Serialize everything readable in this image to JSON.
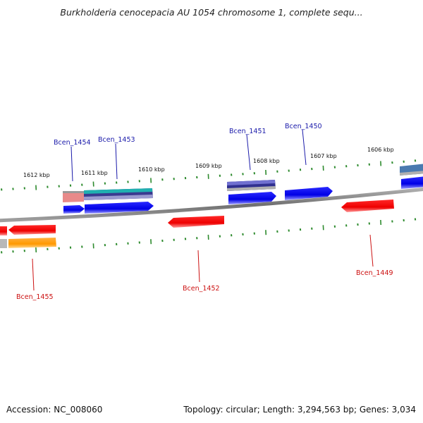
{
  "title": "Burkholderia cenocepacia AU 1054 chromosome 1, complete sequ...",
  "footer": {
    "accession": "Accession: NC_008060",
    "summary": "Topology: circular; Length: 3,294,563 bp; Genes: 3,034"
  },
  "colors": {
    "tick": "#2e8b2e",
    "plus_label": "#1a1aaa",
    "minus_label": "#cc1111",
    "backbone": "#808080"
  },
  "scale_labels": [
    "1612 kbp",
    "1611 kbp",
    "1610 kbp",
    "1609 kbp",
    "1608 kbp",
    "1607 kbp",
    "1606 kbp"
  ],
  "genes_plus": [
    "Bcen_1454",
    "Bcen_1453",
    "Bcen_1451",
    "Bcen_1450"
  ],
  "genes_minus": [
    "Bcen_1455",
    "Bcen_1452",
    "Bcen_1449"
  ]
}
